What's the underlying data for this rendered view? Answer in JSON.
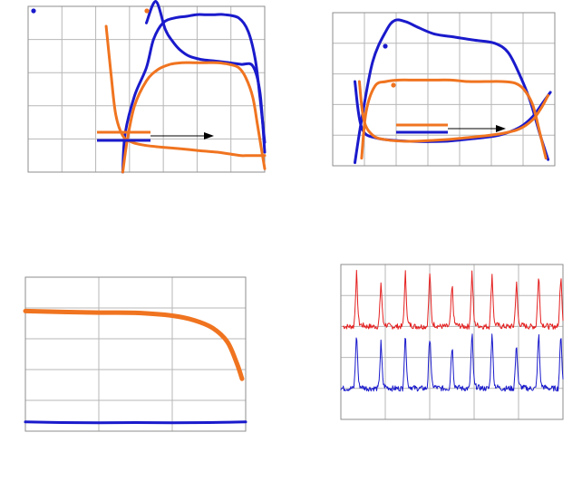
{
  "chart_data": [
    {
      "type": "line",
      "panel": "top-left",
      "xlim": [
        0,
        10
      ],
      "ylim": [
        0,
        10
      ],
      "grid": true,
      "series": [
        {
          "color": "#1a1acc",
          "width": 3,
          "x": [
            5.0,
            5.4,
            5.8,
            6.1,
            6.4,
            6.8,
            7.3,
            7.9,
            8.5,
            9.0,
            9.5,
            9.8,
            10.0
          ],
          "y": [
            9.0,
            10.3,
            8.6,
            7.9,
            7.4,
            7.0,
            6.8,
            6.7,
            6.6,
            6.5,
            6.4,
            4.8,
            1.2
          ]
        },
        {
          "color": "#1a1acc",
          "width": 3,
          "x": [
            4.0,
            4.1,
            4.5,
            5.0,
            5.3,
            5.7,
            6.2,
            6.7,
            7.1,
            7.5,
            7.9,
            8.3,
            8.9,
            9.3,
            9.6,
            9.8,
            10.0
          ],
          "y": [
            0.0,
            2.3,
            4.6,
            6.3,
            8.0,
            9.0,
            9.3,
            9.4,
            9.5,
            9.5,
            9.5,
            9.5,
            9.3,
            8.5,
            6.8,
            4.5,
            1.8
          ]
        },
        {
          "color": "#f07420",
          "width": 3,
          "x": [
            3.3,
            3.5,
            3.7,
            4.0,
            4.4,
            5.0,
            5.7,
            6.5,
            7.2,
            8.0,
            8.5,
            9.0,
            9.3,
            9.6,
            9.8,
            10.0
          ],
          "y": [
            8.8,
            6.0,
            3.5,
            2.2,
            1.8,
            1.6,
            1.5,
            1.4,
            1.3,
            1.2,
            1.1,
            1.0,
            1.0,
            1.0,
            1.0,
            1.0
          ]
        },
        {
          "color": "#f07420",
          "width": 3,
          "x": [
            4.0,
            4.2,
            4.5,
            5.0,
            5.5,
            6.0,
            6.5,
            7.0,
            7.5,
            8.0,
            8.5,
            8.9,
            9.2,
            9.5,
            9.7,
            10.0
          ],
          "y": [
            0.0,
            2.0,
            4.0,
            5.5,
            6.2,
            6.5,
            6.6,
            6.6,
            6.6,
            6.6,
            6.5,
            6.3,
            5.7,
            4.5,
            2.8,
            0.2
          ]
        }
      ]
    },
    {
      "type": "line",
      "panel": "top-right",
      "xlim": [
        0,
        10
      ],
      "ylim": [
        0,
        10
      ],
      "grid": true,
      "series": [
        {
          "color": "#1a1acc",
          "width": 3,
          "x": [
            1.0,
            1.3,
            2.0,
            3.5,
            5.0,
            6.5,
            7.5,
            8.4,
            9.0,
            9.5,
            9.8
          ],
          "y": [
            5.5,
            2.5,
            1.8,
            1.6,
            1.6,
            1.8,
            2.0,
            2.5,
            3.2,
            4.2,
            4.8
          ]
        },
        {
          "color": "#1a1acc",
          "width": 3,
          "x": [
            1.0,
            1.3,
            1.8,
            2.4,
            2.8,
            3.3,
            3.9,
            4.6,
            5.5,
            6.4,
            7.3,
            7.9,
            8.4,
            8.9,
            9.3,
            9.7
          ],
          "y": [
            0.2,
            3.0,
            6.8,
            8.8,
            9.5,
            9.4,
            9.0,
            8.6,
            8.4,
            8.2,
            8.0,
            7.4,
            6.0,
            4.2,
            2.2,
            0.4
          ]
        },
        {
          "color": "#f07420",
          "width": 3,
          "x": [
            1.3,
            1.5,
            1.9,
            2.4,
            3.0,
            3.7,
            4.5,
            5.3,
            6.1,
            6.9,
            7.6,
            8.2,
            8.6,
            9.0,
            9.3,
            9.6
          ],
          "y": [
            0.5,
            3.5,
            5.2,
            5.5,
            5.6,
            5.6,
            5.6,
            5.6,
            5.5,
            5.5,
            5.5,
            5.4,
            5.0,
            4.0,
            2.3,
            0.5
          ]
        },
        {
          "color": "#f07420",
          "width": 3,
          "x": [
            1.2,
            1.4,
            1.8,
            2.4,
            3.5,
            5.0,
            6.5,
            7.6,
            8.4,
            9.0,
            9.4,
            9.7
          ],
          "y": [
            5.5,
            3.0,
            2.0,
            1.7,
            1.6,
            1.7,
            1.9,
            2.1,
            2.4,
            3.0,
            3.8,
            4.6
          ]
        }
      ]
    },
    {
      "type": "line",
      "panel": "bottom-left",
      "xlim": [
        0,
        3
      ],
      "ylim": [
        0,
        5
      ],
      "grid": true,
      "series": [
        {
          "color": "#f07420",
          "width": 5,
          "x": [
            0.0,
            0.5,
            1.0,
            1.5,
            2.0,
            2.3,
            2.55,
            2.75,
            2.88,
            2.95
          ],
          "y": [
            3.9,
            3.87,
            3.85,
            3.84,
            3.75,
            3.6,
            3.35,
            2.9,
            2.2,
            1.7
          ]
        },
        {
          "color": "#1a1acc",
          "width": 3,
          "x": [
            0.0,
            0.5,
            1.0,
            1.5,
            2.0,
            2.5,
            3.0
          ],
          "y": [
            0.3,
            0.28,
            0.27,
            0.28,
            0.27,
            0.28,
            0.3
          ]
        }
      ]
    },
    {
      "type": "line",
      "panel": "bottom-right",
      "xlim": [
        0,
        5
      ],
      "ylim": [
        0,
        5
      ],
      "grid": true,
      "series": [
        {
          "color": "#e52020",
          "width": 1,
          "pattern": "pulse",
          "base": 3.0,
          "peak": 4.6,
          "x0": 0.05,
          "x1": 5.0
        },
        {
          "color": "#1a1acc",
          "width": 1,
          "pattern": "pulse",
          "base": 1.0,
          "peak": 2.7,
          "x0": 0.0,
          "x1": 5.0
        }
      ]
    }
  ]
}
